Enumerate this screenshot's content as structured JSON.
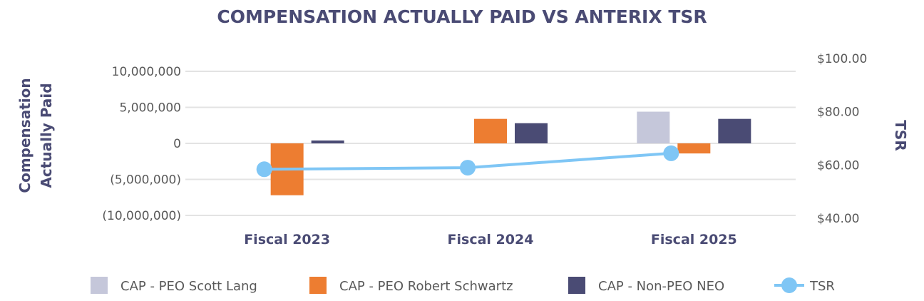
{
  "chart_data": {
    "type": "bar",
    "title": "COMPENSATION ACTUALLY PAID VS ANTERIX TSR",
    "categories": [
      "Fiscal 2023",
      "Fiscal 2024",
      "Fiscal 2025"
    ],
    "ylabel": [
      "Compensation",
      "Actually Paid"
    ],
    "y2label": "TSR",
    "ylim": [
      -10000000,
      10000000
    ],
    "yticks": [
      10000000,
      5000000,
      0,
      -5000000,
      -10000000
    ],
    "ytick_labels": [
      "10,000,000",
      "5,000,000",
      "0",
      "(5,000,000)",
      "(10,000,000)"
    ],
    "y2lim": [
      40,
      100
    ],
    "y2ticks": [
      100,
      80,
      60,
      40
    ],
    "y2tick_labels": [
      "$100.00",
      "$80.00",
      "$60.00",
      "$40.00"
    ],
    "grid": true,
    "legend_placement": "bottom",
    "series": [
      {
        "name": "CAP - PEO Scott Lang",
        "type": "bar",
        "color": "#c5c7da",
        "values": [
          null,
          null,
          4400000
        ]
      },
      {
        "name": "CAP - PEO Robert Schwartz",
        "type": "bar",
        "color": "#ed7d31",
        "values": [
          -7200000,
          3400000,
          -1400000
        ]
      },
      {
        "name": "CAP - Non-PEO NEO",
        "type": "bar",
        "color": "#4a4b74",
        "values": [
          400000,
          2800000,
          3400000
        ]
      },
      {
        "name": "TSR",
        "type": "line",
        "axis": "right",
        "color": "#7fc6f5",
        "values": [
          58.4,
          59.0,
          64.4
        ]
      }
    ]
  }
}
